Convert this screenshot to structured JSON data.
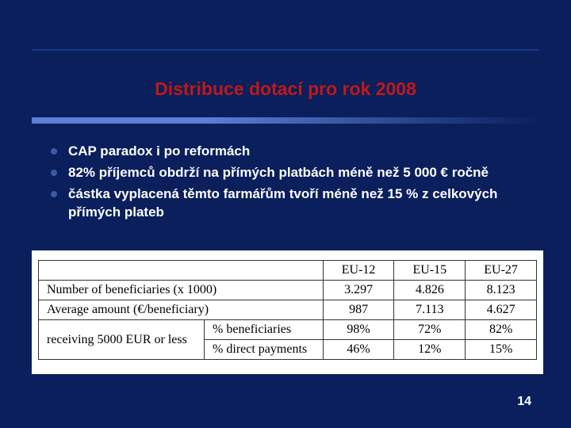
{
  "slide": {
    "title": "Distribuce dotací pro rok 2008",
    "bullets": [
      "CAP paradox i po reformách",
      "82% příjemců obdrží na přímých platbách méně než 5 000 € ročně",
      "částka vyplacená těmto farmářům tvoří méně než 15 % z celkových přímých plateb"
    ],
    "page_number": "14"
  },
  "table": {
    "columns": [
      "",
      "",
      "EU-12",
      "EU-15",
      "EU-27"
    ],
    "rows": [
      {
        "lbl1": "Number of beneficiaries (x 1000)",
        "lbl2": null,
        "vals": [
          "3.297",
          "4.826",
          "8.123"
        ]
      },
      {
        "lbl1": "Average amount (€/beneficiary)",
        "lbl2": null,
        "vals": [
          "987",
          "7.113",
          "4.627"
        ]
      },
      {
        "lbl1": "receiving 5000 EUR or less",
        "lbl2": "% beneficiaries",
        "vals": [
          "98%",
          "72%",
          "82%"
        ]
      },
      {
        "lbl1": null,
        "lbl2": "% direct payments",
        "vals": [
          "46%",
          "12%",
          "15%"
        ]
      }
    ],
    "col_widths": [
      "210px",
      "150px",
      "90px",
      "90px",
      "90px"
    ],
    "styling": {
      "font_family": "Times New Roman",
      "font_size_pt": 16,
      "border_color": "#333333",
      "background": "#ffffff",
      "text_color": "#000000"
    }
  },
  "theme": {
    "background": "#0a1f5c",
    "title_color": "#c01818",
    "bullet_text_color": "#ffffff",
    "bullet_dot_color": "#3a5aa8",
    "accent_bar_color": "#5b7dd6",
    "top_line_color": "#1a3a8a"
  }
}
